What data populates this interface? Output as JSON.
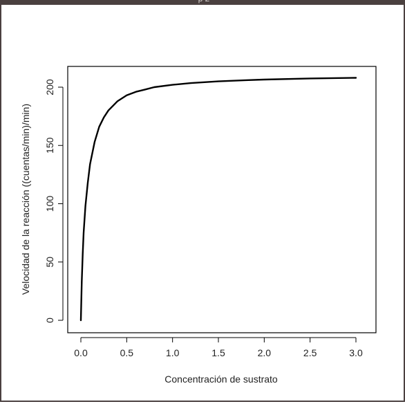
{
  "header_fragment": "p                  2",
  "chart_data": {
    "type": "line",
    "title": "",
    "xlabel": "Concentración de sustrato",
    "ylabel": "Velocidad de la reacción ((cuentas/min)/min)",
    "xlim": [
      0,
      3.0
    ],
    "ylim": [
      0,
      210
    ],
    "x_ticks": [
      "0.0",
      "0.5",
      "1.0",
      "1.5",
      "2.0",
      "2.5",
      "3.0"
    ],
    "y_ticks": [
      "0",
      "50",
      "100",
      "150",
      "200"
    ],
    "grid": false,
    "legend": "none",
    "line_color": "#000000",
    "series": [
      {
        "x": [
          0.0,
          0.005,
          0.01,
          0.02,
          0.03,
          0.05,
          0.075,
          0.1,
          0.15,
          0.2,
          0.25,
          0.3,
          0.4,
          0.5,
          0.6,
          0.7,
          0.8,
          1.0,
          1.2,
          1.5,
          1.8,
          2.0,
          2.5,
          3.0
        ],
        "values": [
          0,
          18,
          33,
          57,
          75,
          98,
          118,
          134,
          153,
          166,
          174,
          180,
          188,
          193,
          196,
          198,
          200,
          202,
          203.5,
          205,
          206,
          206.5,
          207.5,
          208
        ]
      }
    ]
  }
}
